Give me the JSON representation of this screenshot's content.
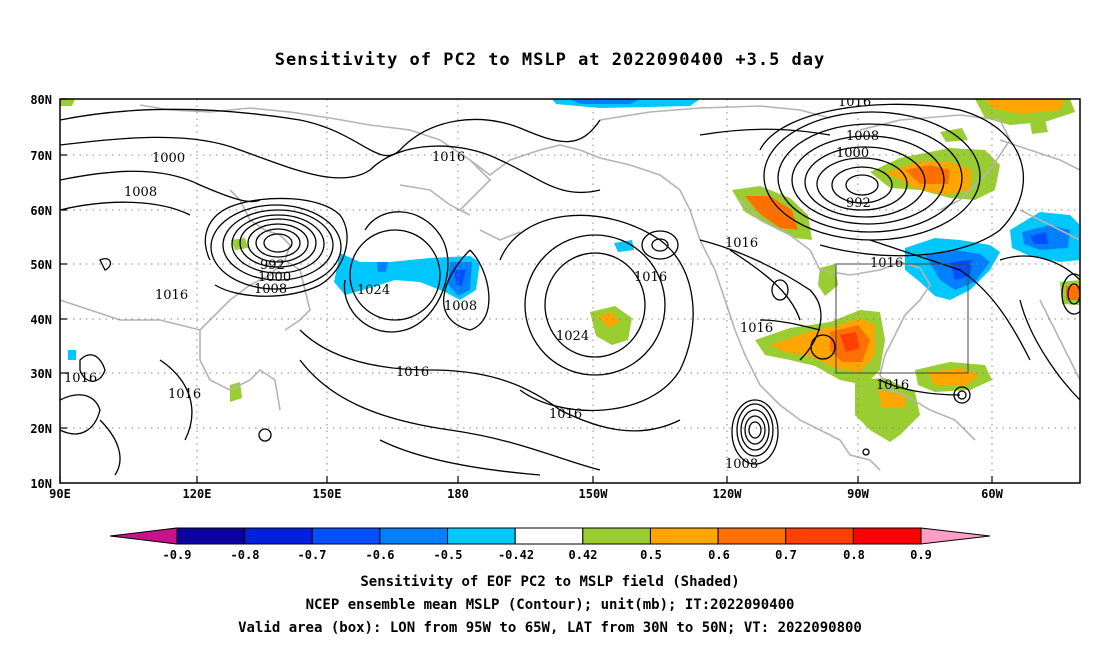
{
  "title": "Sensitivity of PC2 to MSLP at 2022090400 +3.5 day",
  "axes": {
    "lon_ticks": [
      "90E",
      "120E",
      "150E",
      "180",
      "150W",
      "120W",
      "90W",
      "60W"
    ],
    "lat_ticks": [
      "80N",
      "70N",
      "60N",
      "50N",
      "40N",
      "30N",
      "20N",
      "10N"
    ]
  },
  "colorbar": {
    "labels": [
      "-0.9",
      "-0.8",
      "-0.7",
      "-0.6",
      "-0.5",
      "-0.42",
      "0.42",
      "0.5",
      "0.6",
      "0.7",
      "0.8",
      "0.9"
    ],
    "colors": [
      "#0a00a0",
      "#0020e0",
      "#0050ff",
      "#0080ff",
      "#00c8ff",
      "#ffffff",
      "#9acd32",
      "#ffa500",
      "#ff7000",
      "#ff4000",
      "#ff0000"
    ],
    "low_end_color": "#c8148c",
    "high_end_color": "#ff9ec4"
  },
  "contour_labels": [
    "1000",
    "1008",
    "1016",
    "992",
    "1000",
    "1008",
    "1016",
    "1024",
    "1008",
    "1016",
    "1024",
    "1016",
    "1016",
    "1016",
    "1016",
    "1016",
    "1008",
    "1016",
    "1008",
    "1000",
    "992",
    "1016",
    "1016",
    "1016"
  ],
  "valid_box": {
    "lon_from": "95W",
    "lon_to": "65W",
    "lat_from": "30N",
    "lat_to": "50N"
  },
  "captions": [
    "Sensitivity of EOF PC2 to MSLP field (Shaded)",
    "NCEP ensemble mean MSLP (Contour); unit(mb); IT:2022090400",
    "Valid area (box): LON from 95W to 65W, LAT from 30N to 50N; VT: 2022090800"
  ]
}
